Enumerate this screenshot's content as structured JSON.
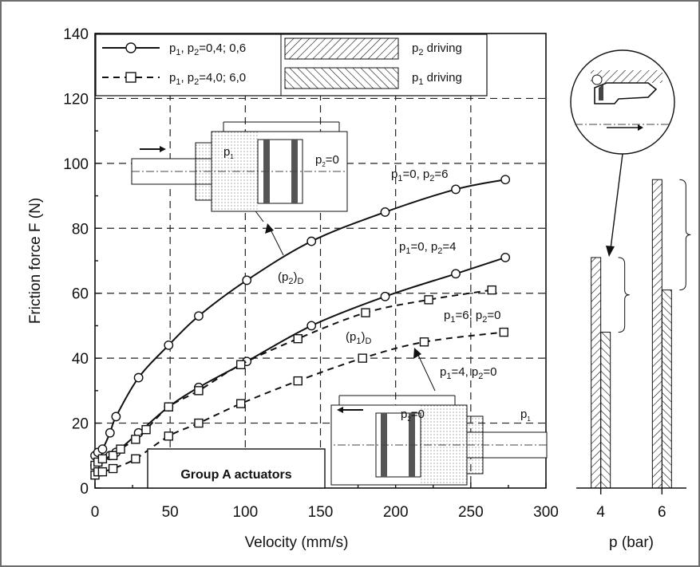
{
  "chart_data": [
    {
      "type": "line",
      "xlabel": "Velocity (mm/s)",
      "ylabel": "Friction force  F (N)",
      "xlim": [
        0,
        300
      ],
      "ylim": [
        0,
        140
      ],
      "xticks": [
        "0",
        "50",
        "100",
        "150",
        "200",
        "250",
        "300"
      ],
      "yticks": [
        "0",
        "20",
        "40",
        "60",
        "80",
        "100",
        "120",
        "140"
      ],
      "grid": true,
      "legend": {
        "entries": [
          {
            "series_marker": "circle",
            "line": "solid",
            "text_parts": [
              "p",
              "1",
              ", p",
              "2",
              "=0,4; 0,6"
            ],
            "band": "p",
            "band_sub": "2",
            "band_text": " driving"
          },
          {
            "series_marker": "square",
            "line": "dashed",
            "text_parts": [
              "p",
              "1",
              ", p",
              "2",
              "=4,0; 6,0"
            ],
            "band": "p",
            "band_sub": "1",
            "band_text": " driving"
          }
        ]
      },
      "series": [
        {
          "label": "p1=0, p2=6",
          "marker": "circle",
          "line": "solid",
          "x": [
            0,
            2,
            5,
            10,
            14,
            29,
            49,
            69,
            101,
            144,
            193,
            240,
            273
          ],
          "y": [
            10,
            11,
            12,
            17,
            22,
            34,
            44,
            53,
            64,
            76,
            85,
            92,
            95
          ]
        },
        {
          "label": "p1=0, p2=4",
          "marker": "circle",
          "line": "solid",
          "x": [
            0,
            2,
            5,
            10,
            14,
            29,
            49,
            69,
            101,
            144,
            193,
            240,
            273
          ],
          "y": [
            7,
            8,
            9,
            10,
            11,
            17,
            25,
            31,
            39,
            50,
            59,
            66,
            71
          ]
        },
        {
          "label": "p1=6, p2=0",
          "marker": "square",
          "line": "dashed",
          "x": [
            0,
            2,
            5,
            12,
            17,
            27,
            34,
            49,
            69,
            97,
            135,
            180,
            222,
            264
          ],
          "y": [
            7,
            8,
            9,
            10,
            12,
            15,
            18,
            25,
            30,
            38,
            46,
            54,
            58,
            61
          ]
        },
        {
          "label": "p1=4, p2=0",
          "marker": "square",
          "line": "dashed",
          "x": [
            0,
            2,
            5,
            12,
            27,
            49,
            69,
            97,
            135,
            178,
            219,
            272
          ],
          "y": [
            4,
            5,
            5,
            6,
            9,
            16,
            20,
            26,
            33,
            40,
            45,
            48
          ]
        }
      ],
      "curve_labels": [
        {
          "parts": [
            "p",
            "1",
            "=0, p",
            "2",
            "=6"
          ]
        },
        {
          "parts": [
            "p",
            "1",
            "=0, p",
            "2",
            "=4"
          ]
        },
        {
          "parts": [
            "p",
            "1",
            "=6, p",
            "2",
            "=0"
          ]
        },
        {
          "parts": [
            "p",
            "1",
            "=4, p",
            "2",
            "=0"
          ]
        }
      ],
      "annotations": [
        {
          "parts": [
            "(p",
            "2",
            ")",
            "D"
          ]
        },
        {
          "parts": [
            "(p",
            "1",
            ")",
            "D"
          ]
        }
      ],
      "box_label": "Group A actuators",
      "inset_top": {
        "chamber_label": "p",
        "chamber_sub": "1",
        "zero_label": "p",
        "zero_sub": "2",
        "zero_text": "=0"
      },
      "inset_bottom": {
        "chamber_label": "p",
        "chamber_sub": "1",
        "zero_label": "p",
        "zero_sub": "2",
        "zero_text": "=0"
      }
    },
    {
      "type": "bar",
      "xlabel": "p (bar)",
      "categories": [
        "4",
        "6"
      ],
      "bars": [
        {
          "x": 4,
          "lower": 48,
          "upper": 71
        },
        {
          "x": 6,
          "lower": 61,
          "upper": 95
        }
      ]
    }
  ]
}
